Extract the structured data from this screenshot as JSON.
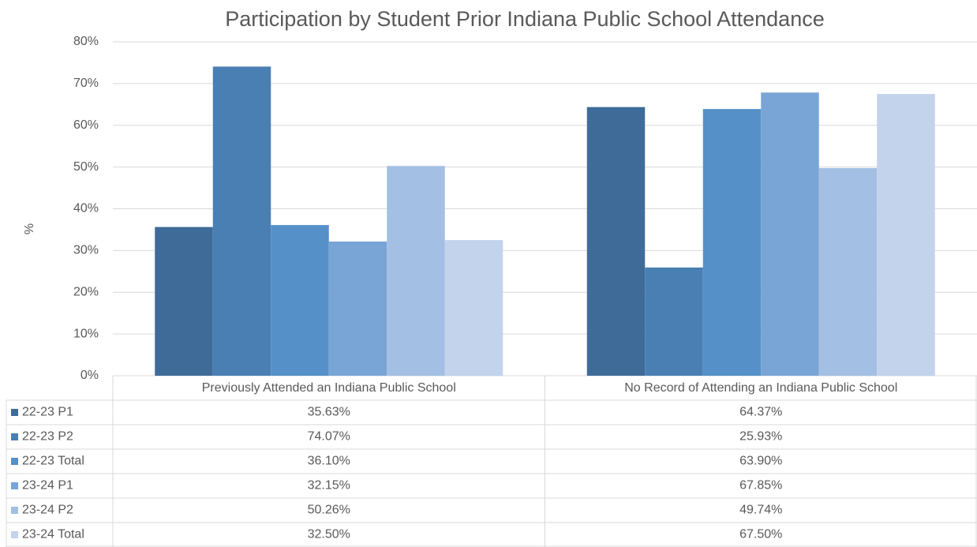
{
  "chart_data": {
    "type": "bar",
    "title": "Participation by Student Prior Indiana Public School Attendance",
    "y_axis_label": "%",
    "categories": [
      "Previously Attended an Indiana Public School",
      "No Record of Attending an Indiana Public School"
    ],
    "series": [
      {
        "name": "22-23 P1",
        "color": "#3f6b98",
        "values": [
          35.63,
          64.37
        ],
        "value_labels": [
          "35.63%",
          "64.37%"
        ]
      },
      {
        "name": "22-23 P2",
        "color": "#4a7fb4",
        "values": [
          74.07,
          25.93
        ],
        "value_labels": [
          "74.07%",
          "25.93%"
        ]
      },
      {
        "name": "22-23 Total",
        "color": "#5590c8",
        "values": [
          36.1,
          63.9
        ],
        "value_labels": [
          "36.10%",
          "63.90%"
        ]
      },
      {
        "name": "23-24 P1",
        "color": "#79a5d6",
        "values": [
          32.15,
          67.85
        ],
        "value_labels": [
          "32.15%",
          "67.85%"
        ]
      },
      {
        "name": "23-24 P2",
        "color": "#a3bfe3",
        "values": [
          50.26,
          49.74
        ],
        "value_labels": [
          "50.26%",
          "49.74%"
        ]
      },
      {
        "name": "23-24 Total",
        "color": "#c3d3ec",
        "values": [
          32.5,
          67.5
        ],
        "value_labels": [
          "32.50%",
          "67.50%"
        ]
      }
    ],
    "ylim": [
      0,
      80
    ],
    "yticks": [
      {
        "value": 0,
        "label": "0%"
      },
      {
        "value": 10,
        "label": "10%"
      },
      {
        "value": 20,
        "label": "20%"
      },
      {
        "value": 30,
        "label": "30%"
      },
      {
        "value": 40,
        "label": "40%"
      },
      {
        "value": 50,
        "label": "50%"
      },
      {
        "value": 60,
        "label": "60%"
      },
      {
        "value": 70,
        "label": "70%"
      },
      {
        "value": 80,
        "label": "80%"
      }
    ],
    "grid": true
  }
}
